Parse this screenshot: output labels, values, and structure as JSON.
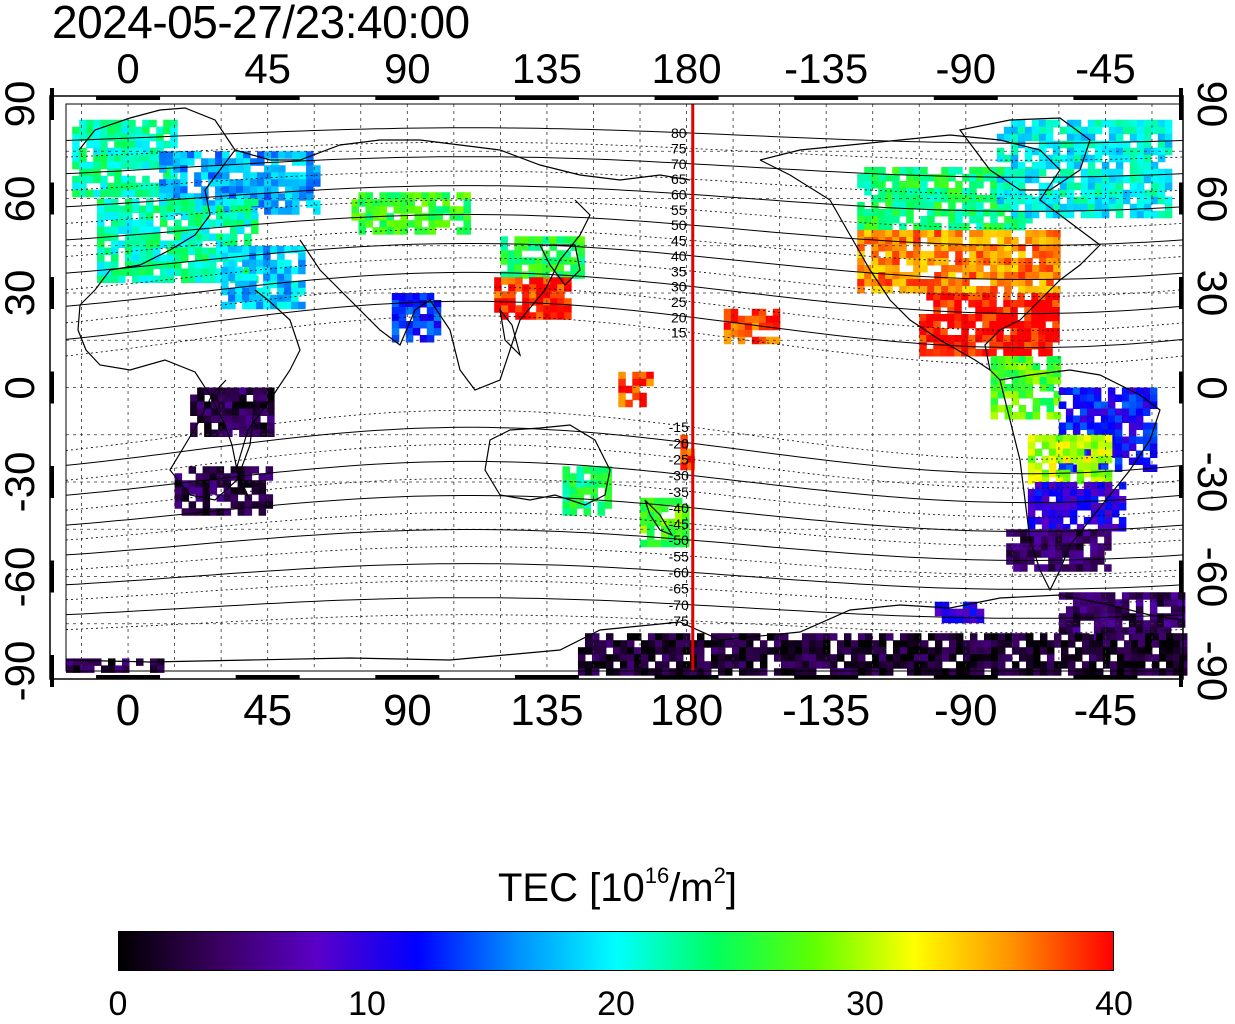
{
  "timestamp": "2024-05-27/23:40:00",
  "map": {
    "lon_ticks_top": [
      "0",
      "45",
      "90",
      "135",
      "180",
      "-135",
      "-90",
      "-45"
    ],
    "lon_ticks_bottom": [
      "0",
      "45",
      "90",
      "135",
      "180",
      "-135",
      "-90",
      "-45"
    ],
    "lat_ticks_left": [
      "90",
      "60",
      "30",
      "0",
      "-30",
      "-60",
      "-90"
    ],
    "lat_ticks_right": [
      "90",
      "60",
      "30",
      "0",
      "-30",
      "-60",
      "-90"
    ],
    "lon_values": [
      0,
      45,
      90,
      135,
      180,
      225,
      270,
      315
    ],
    "lat_values": [
      90,
      60,
      30,
      0,
      -30,
      -60,
      -90
    ],
    "lon_range": [
      -20,
      340
    ],
    "lat_range": [
      -90,
      90
    ],
    "meridian_lon": 182,
    "meridian_color": "#e00000",
    "magnetic_lat_labels": [
      "80",
      "75",
      "70",
      "65",
      "60",
      "55",
      "50",
      "45",
      "40",
      "35",
      "30",
      "25",
      "20",
      "15",
      "-15",
      "-20",
      "-25",
      "-30",
      "-35",
      "-40",
      "-45",
      "-50",
      "-55",
      "-60",
      "-65",
      "-70",
      "-75"
    ],
    "magnetic_lat_values": [
      80,
      75,
      70,
      65,
      60,
      55,
      50,
      45,
      40,
      35,
      30,
      25,
      20,
      15,
      -15,
      -20,
      -25,
      -30,
      -35,
      -40,
      -45,
      -50,
      -55,
      -60,
      -65,
      -70,
      -75
    ]
  },
  "colorbar": {
    "title_main": "TEC  [10",
    "title_exp1": "16",
    "title_mid": "/m",
    "title_exp2": "2",
    "title_end": "]",
    "tick_labels": [
      "0",
      "10",
      "20",
      "30",
      "40"
    ],
    "tick_values": [
      0,
      10,
      20,
      30,
      40
    ],
    "range": [
      0,
      40
    ],
    "colors": [
      "#000000",
      "#3a0060",
      "#5a00c8",
      "#0000ff",
      "#0090ff",
      "#00ffff",
      "#00ff60",
      "#60ff00",
      "#ffff00",
      "#ff9000",
      "#ff0000"
    ]
  },
  "tec_regions": [
    {
      "tec": 22,
      "lon0": -18,
      "lon1": 15,
      "lat0": 62,
      "lat1": 85
    },
    {
      "tec": 17,
      "lon0": 10,
      "lon1": 60,
      "lat0": 55,
      "lat1": 75
    },
    {
      "tec": 22,
      "lon0": -10,
      "lon1": 40,
      "lat0": 35,
      "lat1": 60
    },
    {
      "tec": 18,
      "lon0": 30,
      "lon1": 55,
      "lat0": 25,
      "lat1": 45
    },
    {
      "tec": 25,
      "lon0": 120,
      "lon1": 145,
      "lat0": 35,
      "lat1": 48
    },
    {
      "tec": 39,
      "lon0": 118,
      "lon1": 142,
      "lat0": 22,
      "lat1": 35
    },
    {
      "tec": 26,
      "lon0": 72,
      "lon1": 110,
      "lat0": 50,
      "lat1": 62
    },
    {
      "tec": 13,
      "lon0": 85,
      "lon1": 100,
      "lat0": 15,
      "lat1": 30
    },
    {
      "tec": 38,
      "lon0": 178,
      "lon1": 182,
      "lat0": -25,
      "lat1": -15
    },
    {
      "tec": 38,
      "lon0": 192,
      "lon1": 208,
      "lat0": 15,
      "lat1": 25
    },
    {
      "tec": 38,
      "lon0": 158,
      "lon1": 168,
      "lat0": -5,
      "lat1": 5
    },
    {
      "tec": 3,
      "lon0": 15,
      "lon1": 45,
      "lat0": -40,
      "lat1": -25
    },
    {
      "tec": 3,
      "lon0": 20,
      "lon1": 45,
      "lat0": -15,
      "lat1": 0
    },
    {
      "tec": 24,
      "lon0": 140,
      "lon1": 155,
      "lat0": -40,
      "lat1": -25
    },
    {
      "tec": 27,
      "lon0": 165,
      "lon1": 180,
      "lat0": -50,
      "lat1": -35
    },
    {
      "tec": 24,
      "lon0": 235,
      "lon1": 290,
      "lat0": 52,
      "lat1": 70
    },
    {
      "tec": 20,
      "lon0": 280,
      "lon1": 335,
      "lat0": 55,
      "lat1": 85
    },
    {
      "tec": 36,
      "lon0": 235,
      "lon1": 300,
      "lat0": 30,
      "lat1": 50
    },
    {
      "tec": 40,
      "lon0": 255,
      "lon1": 300,
      "lat0": 10,
      "lat1": 30
    },
    {
      "tec": 27,
      "lon0": 278,
      "lon1": 300,
      "lat0": -10,
      "lat1": 10
    },
    {
      "tec": 12,
      "lon0": 300,
      "lon1": 330,
      "lat0": -25,
      "lat1": 0
    },
    {
      "tec": 30,
      "lon0": 290,
      "lon1": 315,
      "lat0": -30,
      "lat1": -15
    },
    {
      "tec": 10,
      "lon0": 290,
      "lon1": 320,
      "lat0": -45,
      "lat1": -30
    },
    {
      "tec": 4,
      "lon0": 283,
      "lon1": 315,
      "lat0": -58,
      "lat1": -45
    },
    {
      "tec": 4,
      "lon0": 300,
      "lon1": 340,
      "lat0": -80,
      "lat1": -65
    },
    {
      "tec": 2,
      "lon0": 145,
      "lon1": 340,
      "lat0": -90,
      "lat1": -78
    },
    {
      "tec": 3,
      "lon0": -20,
      "lon1": 10,
      "lat0": -90,
      "lat1": -86
    },
    {
      "tec": 10,
      "lon0": 260,
      "lon1": 275,
      "lat0": -74,
      "lat1": -68
    }
  ]
}
